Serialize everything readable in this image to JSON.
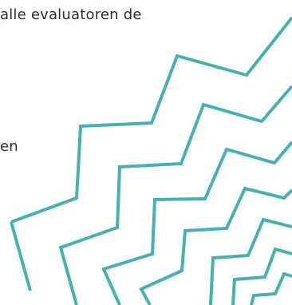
{
  "text": {
    "line1": "alle evaluatoren de",
    "line2": "en"
  },
  "decoration": {
    "name": "zigzag-line-pattern",
    "stroke_color": "#45b3ad"
  }
}
